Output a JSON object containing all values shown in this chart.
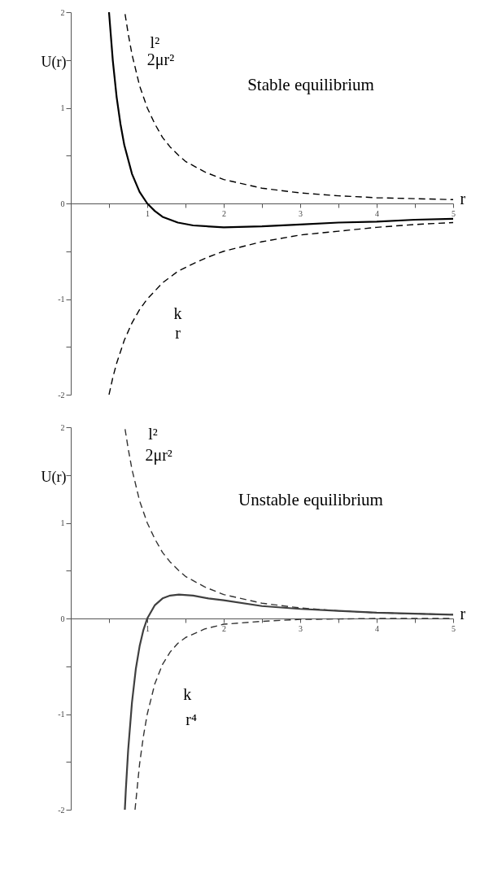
{
  "chart_data": [
    {
      "type": "line",
      "title": "Stable equilibrium",
      "xlabel": "r",
      "ylabel": "U(r)",
      "xlim": [
        0,
        5
      ],
      "ylim": [
        -2,
        2
      ],
      "xticks": [
        {
          "value": 0.5,
          "label": null
        },
        1,
        {
          "value": 1.5,
          "label": null
        },
        2,
        {
          "value": 2.5,
          "label": null
        },
        3,
        {
          "value": 3.5,
          "label": null
        },
        4,
        {
          "value": 4.5,
          "label": null
        },
        5
      ],
      "yticks": [
        -2,
        {
          "value": -1.5,
          "label": null
        },
        -1,
        {
          "value": -0.5,
          "label": null
        },
        0,
        {
          "value": 0.5,
          "label": null
        },
        1,
        {
          "value": 1.5,
          "label": null
        },
        2
      ],
      "grid": false,
      "series": [
        {
          "color": "#000000",
          "line_style": "dashed",
          "x": [
            0.71,
            0.75,
            0.8,
            0.9,
            1,
            1.1,
            1.2,
            1.3,
            1.4,
            1.5,
            1.75,
            2,
            2.5,
            3,
            3.5,
            4,
            4.5,
            5
          ],
          "values": [
            1.98,
            1.78,
            1.56,
            1.23,
            1,
            0.83,
            0.69,
            0.59,
            0.51,
            0.44,
            0.33,
            0.25,
            0.16,
            0.11,
            0.08,
            0.06,
            0.05,
            0.04
          ]
        },
        {
          "color": "#000000",
          "line_style": "dashed",
          "x": [
            0.5,
            0.55,
            0.6,
            0.7,
            0.8,
            0.9,
            1,
            1.2,
            1.4,
            1.6,
            1.8,
            2,
            2.5,
            3,
            3.5,
            4,
            4.5,
            5
          ],
          "values": [
            -2,
            -1.82,
            -1.67,
            -1.43,
            -1.25,
            -1.11,
            -1,
            -0.83,
            -0.71,
            -0.63,
            -0.56,
            -0.5,
            -0.4,
            -0.33,
            -0.29,
            -0.25,
            -0.22,
            -0.2
          ]
        },
        {
          "color": "#000000",
          "line_style": "solid",
          "x": [
            0.5,
            0.55,
            0.6,
            0.65,
            0.7,
            0.8,
            0.9,
            1,
            1.1,
            1.2,
            1.4,
            1.6,
            2,
            2.5,
            3,
            3.5,
            4,
            4.5,
            5
          ],
          "values": [
            2,
            1.49,
            1.11,
            0.83,
            0.61,
            0.31,
            0.12,
            0,
            -0.08,
            -0.14,
            -0.2,
            -0.23,
            -0.25,
            -0.24,
            -0.22,
            -0.2,
            -0.19,
            -0.17,
            -0.16
          ]
        }
      ],
      "annotations": [
        "l²",
        "2μr²",
        "k",
        "r"
      ]
    },
    {
      "type": "line",
      "title": "Unstable equilibrium",
      "xlabel": "r",
      "ylabel": "U(r)",
      "xlim": [
        0,
        5
      ],
      "ylim": [
        -2,
        2
      ],
      "xticks": [
        {
          "value": 0.5,
          "label": null
        },
        1,
        {
          "value": 1.5,
          "label": null
        },
        2,
        {
          "value": 2.5,
          "label": null
        },
        3,
        {
          "value": 3.5,
          "label": null
        },
        4,
        {
          "value": 4.5,
          "label": null
        },
        5
      ],
      "yticks": [
        -2,
        {
          "value": -1.5,
          "label": null
        },
        -1,
        {
          "value": -0.5,
          "label": null
        },
        0,
        {
          "value": 0.5,
          "label": null
        },
        1,
        {
          "value": 1.5,
          "label": null
        },
        2
      ],
      "grid": false,
      "series": [
        {
          "color": "#333333",
          "line_style": "dashed",
          "x": [
            0.71,
            0.75,
            0.8,
            0.9,
            1,
            1.1,
            1.2,
            1.3,
            1.4,
            1.5,
            1.75,
            2,
            2.5,
            3,
            3.5,
            4,
            4.5,
            5
          ],
          "values": [
            1.98,
            1.78,
            1.56,
            1.23,
            1,
            0.83,
            0.69,
            0.59,
            0.51,
            0.44,
            0.33,
            0.25,
            0.16,
            0.11,
            0.08,
            0.06,
            0.05,
            0.04
          ]
        },
        {
          "color": "#333333",
          "line_style": "dashed",
          "x": [
            0.84,
            0.85,
            0.9,
            0.95,
            1,
            1.1,
            1.2,
            1.3,
            1.4,
            1.5,
            1.75,
            2,
            2.5,
            3,
            4,
            5
          ],
          "values": [
            -2,
            -1.92,
            -1.52,
            -1.23,
            -1,
            -0.68,
            -0.48,
            -0.35,
            -0.26,
            -0.2,
            -0.11,
            -0.06,
            -0.03,
            -0.01,
            0,
            0
          ]
        },
        {
          "color": "#404040",
          "line_style": "solid",
          "x": [
            0.707,
            0.72,
            0.75,
            0.8,
            0.85,
            0.9,
            0.95,
            1,
            1.1,
            1.2,
            1.3,
            1.414,
            1.6,
            1.8,
            2,
            2.5,
            3,
            3.5,
            4,
            4.5,
            5
          ],
          "values": [
            -2,
            -1.79,
            -1.38,
            -0.88,
            -0.53,
            -0.29,
            -0.12,
            0,
            0.14,
            0.21,
            0.24,
            0.25,
            0.24,
            0.21,
            0.19,
            0.13,
            0.1,
            0.08,
            0.06,
            0.05,
            0.04
          ]
        }
      ],
      "annotations": [
        "l²",
        "2μr²",
        "k",
        "r⁴"
      ]
    }
  ]
}
